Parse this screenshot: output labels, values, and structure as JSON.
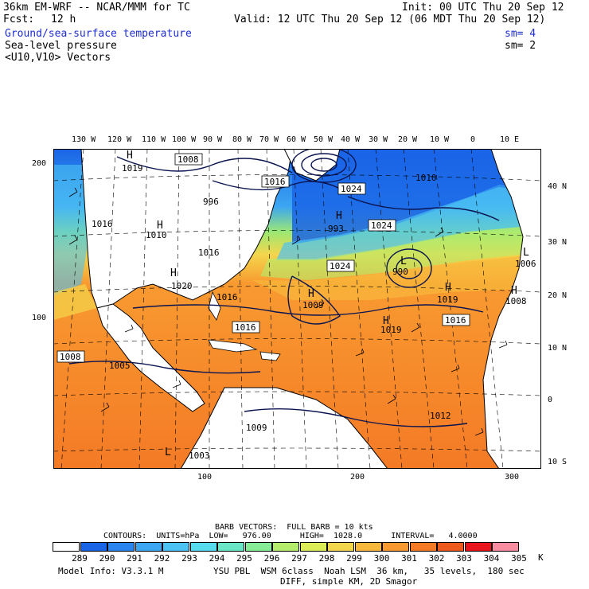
{
  "header": {
    "model_title": "36km EM-WRF -- NCAR/MMM for TC",
    "init": "Init: 00 UTC Thu 20 Sep 12",
    "fcst_label": "Fcst:",
    "fcst_value": "12 h",
    "valid": "Valid: 12 UTC Thu 20 Sep 12 (06 MDT Thu 20 Sep 12)",
    "field1": "Ground/sea-surface temperature",
    "field1_sm": "sm= 4",
    "field2": "Sea-level pressure",
    "field2_sm": "sm= 2",
    "field3": "<U10,V10> Vectors"
  },
  "axes": {
    "top_lon": [
      "130 W",
      "120 W",
      "110 W",
      "100 W",
      "90 W",
      "80 W",
      "70 W",
      "60 W",
      "50 W",
      "40 W",
      "30 W",
      "20 W",
      "10 W",
      "0",
      "10 E"
    ],
    "right_lat": [
      "40 N",
      "30 N",
      "20 N",
      "10 N",
      "0",
      "10 S"
    ],
    "left_grid": [
      "200",
      "100"
    ],
    "bottom_grid": [
      "100",
      "200",
      "300"
    ]
  },
  "map": {
    "pressure_labels": [
      "1019",
      "1008",
      "1016",
      "1024",
      "1010",
      "996",
      "1016",
      "1024",
      "1010",
      "1016",
      "993",
      "1024",
      "1006",
      "990",
      "1024",
      "1020",
      "1016",
      "1009",
      "1019",
      "1008",
      "1019",
      "1016",
      "1016",
      "1008",
      "1005",
      "1012",
      "1009",
      "1003"
    ],
    "high_low_marks": [
      "H",
      "H",
      "H",
      "H",
      "H",
      "L",
      "L",
      "L",
      "H",
      "H",
      "H"
    ]
  },
  "legend": {
    "barb_line": "BARB VECTORS:  FULL BARB = 10 kts",
    "contours_line": "CONTOURS:  UNITS=hPa  LOW=   976.00      HIGH=  1028.0      INTERVAL=   4.0000",
    "unit": "K",
    "scale_labels": [
      "289",
      "290",
      "291",
      "292",
      "293",
      "294",
      "295",
      "296",
      "297",
      "298",
      "299",
      "300",
      "301",
      "302",
      "303",
      "304",
      "305"
    ],
    "scale_colors": [
      "#ffffff",
      "#1a64e6",
      "#2a86ee",
      "#3ca6f2",
      "#4cc2f4",
      "#56dcec",
      "#6ae6c6",
      "#86ec96",
      "#b4ec6c",
      "#dcec56",
      "#f4d64c",
      "#f8b83c",
      "#f89a30",
      "#f47a26",
      "#ee5a1e",
      "#e8141e",
      "#f88ca0"
    ]
  },
  "footer": {
    "model_info": "Model Info: V3.3.1 M",
    "physics": "YSU PBL  WSM 6class  Noah LSM  36 km,   35 levels,  180 sec",
    "diff": "DIFF, simple KM, 2D Smagor"
  }
}
